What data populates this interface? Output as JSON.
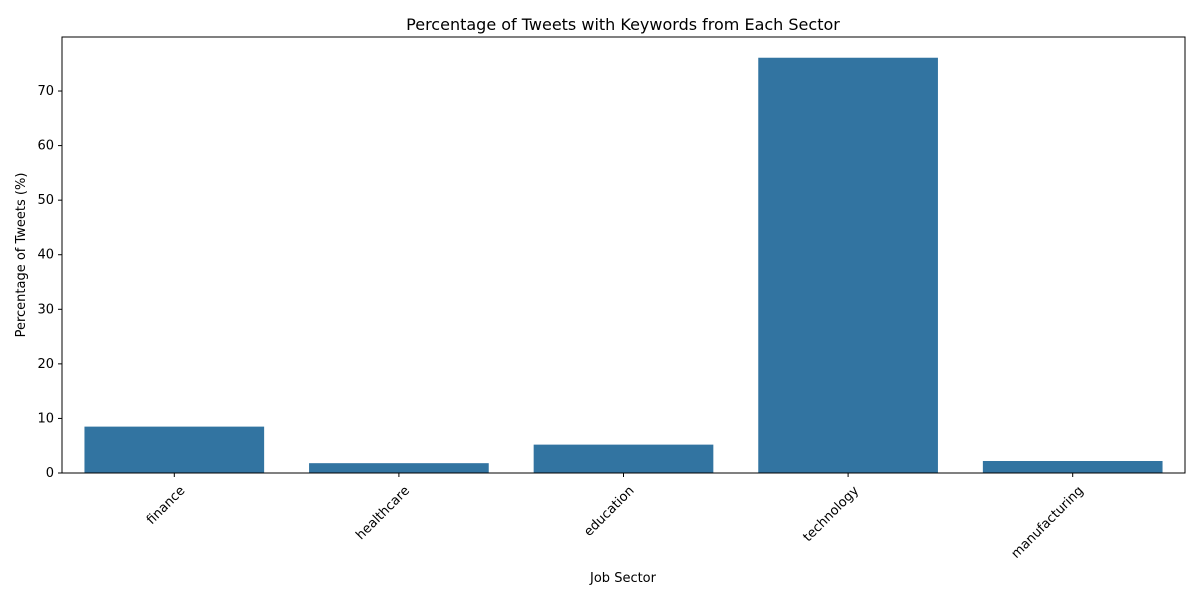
{
  "chart_data": {
    "type": "bar",
    "title": "Percentage of Tweets with Keywords from Each Sector",
    "xlabel": "Job Sector",
    "ylabel": "Percentage of Tweets (%)",
    "categories": [
      "finance",
      "healthcare",
      "education",
      "technology",
      "manufacturing"
    ],
    "values": [
      8.5,
      1.8,
      5.2,
      76.1,
      2.2
    ],
    "ylim": [
      0,
      79.9
    ],
    "yticks": [
      0,
      10,
      20,
      30,
      40,
      50,
      60,
      70
    ],
    "grid": false,
    "legend": "none",
    "bar_color": "#3274a1",
    "xtick_rotation_deg": 45
  }
}
